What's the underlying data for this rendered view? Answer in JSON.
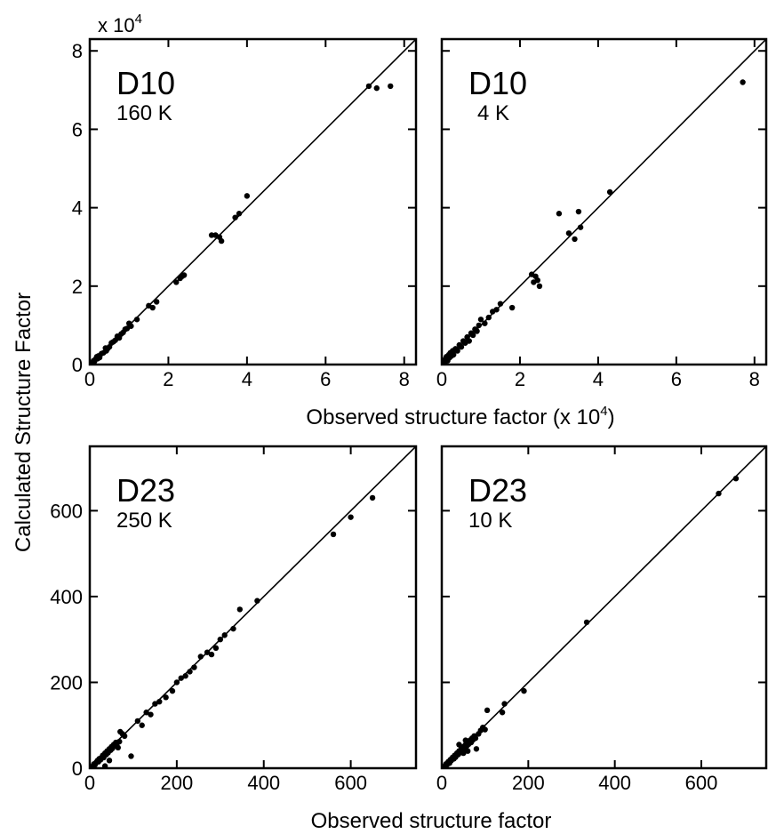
{
  "figure": {
    "ylabel": "Calculated Structure Factor",
    "top_xlabel": "Observed structure factor (x 10",
    "top_xlabel_exp": "4",
    "top_xlabel_close": ")",
    "bottom_xlabel": "Observed structure factor",
    "top_multiplier": "x 10",
    "top_multiplier_exp": "4"
  },
  "chart_data": [
    {
      "type": "scatter",
      "label": "D10",
      "sublabel": "160 K",
      "xlim": [
        0,
        8.3
      ],
      "ylim": [
        0,
        8.3
      ],
      "xticks": [
        0,
        2,
        4,
        6,
        8
      ],
      "yticks": [
        0,
        2,
        4,
        6,
        8
      ],
      "fit_line": [
        [
          0,
          0
        ],
        [
          8.3,
          8.3
        ]
      ],
      "points": [
        [
          0.05,
          0.03
        ],
        [
          0.08,
          0.06
        ],
        [
          0.1,
          0.1
        ],
        [
          0.12,
          0.08
        ],
        [
          0.15,
          0.14
        ],
        [
          0.18,
          0.2
        ],
        [
          0.2,
          0.15
        ],
        [
          0.22,
          0.22
        ],
        [
          0.25,
          0.18
        ],
        [
          0.3,
          0.28
        ],
        [
          0.35,
          0.3
        ],
        [
          0.4,
          0.42
        ],
        [
          0.42,
          0.35
        ],
        [
          0.45,
          0.4
        ],
        [
          0.5,
          0.45
        ],
        [
          0.55,
          0.55
        ],
        [
          0.6,
          0.58
        ],
        [
          0.65,
          0.62
        ],
        [
          0.7,
          0.72
        ],
        [
          0.75,
          0.68
        ],
        [
          0.8,
          0.78
        ],
        [
          0.85,
          0.82
        ],
        [
          0.9,
          0.9
        ],
        [
          0.95,
          0.92
        ],
        [
          1.0,
          1.05
        ],
        [
          1.05,
          0.98
        ],
        [
          1.2,
          1.15
        ],
        [
          1.5,
          1.5
        ],
        [
          1.6,
          1.45
        ],
        [
          1.7,
          1.6
        ],
        [
          2.2,
          2.1
        ],
        [
          2.3,
          2.2
        ],
        [
          2.35,
          2.25
        ],
        [
          2.4,
          2.28
        ],
        [
          3.1,
          3.3
        ],
        [
          3.2,
          3.3
        ],
        [
          3.3,
          3.25
        ],
        [
          3.35,
          3.15
        ],
        [
          3.7,
          3.75
        ],
        [
          3.8,
          3.85
        ],
        [
          4.0,
          4.3
        ],
        [
          7.1,
          7.1
        ],
        [
          7.3,
          7.05
        ],
        [
          7.65,
          7.1
        ]
      ]
    },
    {
      "type": "scatter",
      "label": "D10",
      "sublabel": "4 K",
      "xlim": [
        0,
        8.3
      ],
      "ylim": [
        0,
        8.3
      ],
      "xticks": [
        0,
        2,
        4,
        6,
        8
      ],
      "yticks": [
        0,
        2,
        4,
        6,
        8
      ],
      "fit_line": [
        [
          0,
          0
        ],
        [
          8.3,
          8.3
        ]
      ],
      "points": [
        [
          0.02,
          0.05
        ],
        [
          0.05,
          0.1
        ],
        [
          0.08,
          0.05
        ],
        [
          0.1,
          0.15
        ],
        [
          0.12,
          0.2
        ],
        [
          0.15,
          0.1
        ],
        [
          0.18,
          0.25
        ],
        [
          0.2,
          0.18
        ],
        [
          0.22,
          0.3
        ],
        [
          0.25,
          0.22
        ],
        [
          0.28,
          0.35
        ],
        [
          0.3,
          0.25
        ],
        [
          0.35,
          0.4
        ],
        [
          0.4,
          0.35
        ],
        [
          0.45,
          0.5
        ],
        [
          0.5,
          0.45
        ],
        [
          0.55,
          0.6
        ],
        [
          0.6,
          0.55
        ],
        [
          0.65,
          0.7
        ],
        [
          0.7,
          0.6
        ],
        [
          0.75,
          0.8
        ],
        [
          0.8,
          0.75
        ],
        [
          0.85,
          0.9
        ],
        [
          0.9,
          0.85
        ],
        [
          0.95,
          1.0
        ],
        [
          1.0,
          1.15
        ],
        [
          1.1,
          1.05
        ],
        [
          1.2,
          1.2
        ],
        [
          1.3,
          1.35
        ],
        [
          1.4,
          1.4
        ],
        [
          1.5,
          1.55
        ],
        [
          1.8,
          1.45
        ],
        [
          2.3,
          2.3
        ],
        [
          2.35,
          2.1
        ],
        [
          2.4,
          2.25
        ],
        [
          2.45,
          2.15
        ],
        [
          2.5,
          2.0
        ],
        [
          3.0,
          3.85
        ],
        [
          3.25,
          3.35
        ],
        [
          3.4,
          3.2
        ],
        [
          3.5,
          3.9
        ],
        [
          3.55,
          3.5
        ],
        [
          4.3,
          4.4
        ],
        [
          7.7,
          7.2
        ]
      ]
    },
    {
      "type": "scatter",
      "label": "D23",
      "sublabel": "250 K",
      "xlim": [
        0,
        750
      ],
      "ylim": [
        0,
        750
      ],
      "xticks": [
        0,
        200,
        400,
        600
      ],
      "yticks": [
        0,
        200,
        400,
        600
      ],
      "fit_line": [
        [
          0,
          0
        ],
        [
          750,
          750
        ]
      ],
      "points": [
        [
          5,
          2
        ],
        [
          8,
          6
        ],
        [
          10,
          10
        ],
        [
          12,
          8
        ],
        [
          15,
          14
        ],
        [
          18,
          18
        ],
        [
          20,
          15
        ],
        [
          22,
          22
        ],
        [
          25,
          20
        ],
        [
          28,
          26
        ],
        [
          30,
          30
        ],
        [
          32,
          25
        ],
        [
          35,
          35
        ],
        [
          38,
          32
        ],
        [
          40,
          40
        ],
        [
          42,
          36
        ],
        [
          45,
          45
        ],
        [
          48,
          42
        ],
        [
          50,
          50
        ],
        [
          52,
          46
        ],
        [
          55,
          55
        ],
        [
          58,
          52
        ],
        [
          60,
          60
        ],
        [
          62,
          56
        ],
        [
          65,
          48
        ],
        [
          68,
          62
        ],
        [
          70,
          85
        ],
        [
          75,
          80
        ],
        [
          80,
          75
        ],
        [
          95,
          28
        ],
        [
          110,
          110
        ],
        [
          120,
          100
        ],
        [
          130,
          130
        ],
        [
          140,
          125
        ],
        [
          150,
          150
        ],
        [
          160,
          155
        ],
        [
          175,
          165
        ],
        [
          190,
          180
        ],
        [
          200,
          200
        ],
        [
          210,
          210
        ],
        [
          220,
          215
        ],
        [
          230,
          225
        ],
        [
          240,
          235
        ],
        [
          255,
          260
        ],
        [
          270,
          270
        ],
        [
          280,
          265
        ],
        [
          290,
          280
        ],
        [
          300,
          300
        ],
        [
          310,
          310
        ],
        [
          330,
          325
        ],
        [
          345,
          370
        ],
        [
          385,
          390
        ],
        [
          560,
          545
        ],
        [
          600,
          585
        ],
        [
          650,
          630
        ],
        [
          35,
          5
        ],
        [
          45,
          18
        ]
      ]
    },
    {
      "type": "scatter",
      "label": "D23",
      "sublabel": "10 K",
      "xlim": [
        0,
        750
      ],
      "ylim": [
        0,
        750
      ],
      "xticks": [
        0,
        200,
        400,
        600
      ],
      "yticks": [
        0,
        200,
        400,
        600
      ],
      "fit_line": [
        [
          0,
          0
        ],
        [
          750,
          750
        ]
      ],
      "points": [
        [
          5,
          3
        ],
        [
          8,
          6
        ],
        [
          10,
          10
        ],
        [
          12,
          8
        ],
        [
          15,
          15
        ],
        [
          18,
          12
        ],
        [
          20,
          20
        ],
        [
          22,
          18
        ],
        [
          25,
          25
        ],
        [
          28,
          22
        ],
        [
          30,
          30
        ],
        [
          32,
          26
        ],
        [
          35,
          35
        ],
        [
          38,
          32
        ],
        [
          40,
          40
        ],
        [
          42,
          36
        ],
        [
          45,
          45
        ],
        [
          48,
          42
        ],
        [
          50,
          50
        ],
        [
          52,
          46
        ],
        [
          55,
          55
        ],
        [
          58,
          52
        ],
        [
          60,
          60
        ],
        [
          62,
          56
        ],
        [
          65,
          65
        ],
        [
          68,
          60
        ],
        [
          70,
          70
        ],
        [
          72,
          66
        ],
        [
          75,
          75
        ],
        [
          78,
          70
        ],
        [
          80,
          45
        ],
        [
          85,
          80
        ],
        [
          90,
          88
        ],
        [
          95,
          95
        ],
        [
          100,
          90
        ],
        [
          105,
          135
        ],
        [
          140,
          130
        ],
        [
          145,
          150
        ],
        [
          190,
          180
        ],
        [
          335,
          340
        ],
        [
          640,
          640
        ],
        [
          680,
          675
        ],
        [
          40,
          55
        ],
        [
          55,
          65
        ],
        [
          50,
          35
        ],
        [
          60,
          40
        ]
      ]
    }
  ]
}
